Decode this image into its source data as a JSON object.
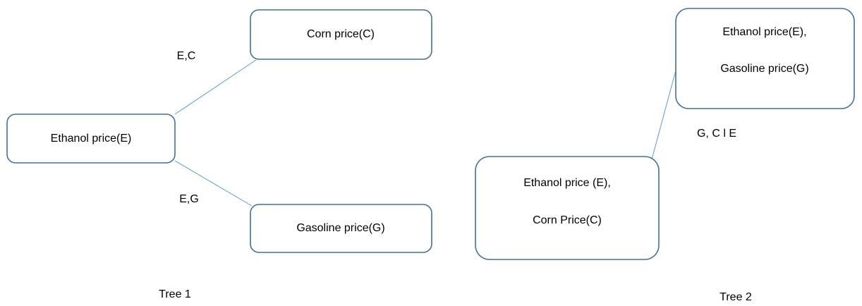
{
  "tree_1": {
    "nodes": [
      {
        "label": "Ethanol price(E)"
      },
      {
        "label": "Corn price(C)"
      },
      {
        "label": "Gasoline price(G)"
      }
    ],
    "edges": [
      {
        "label": "E,C"
      },
      {
        "label": "E,G"
      }
    ],
    "caption": "Tree 1"
  },
  "tree_2": {
    "nodes": [
      {
        "lines": [
          "Ethanol price(E),",
          "Gasoline price(G)"
        ]
      },
      {
        "lines": [
          "Ethanol price (E),",
          "Corn Price(C)"
        ]
      }
    ],
    "edges": [
      {
        "label": "G, C l E"
      }
    ],
    "caption": "Tree 2"
  }
}
